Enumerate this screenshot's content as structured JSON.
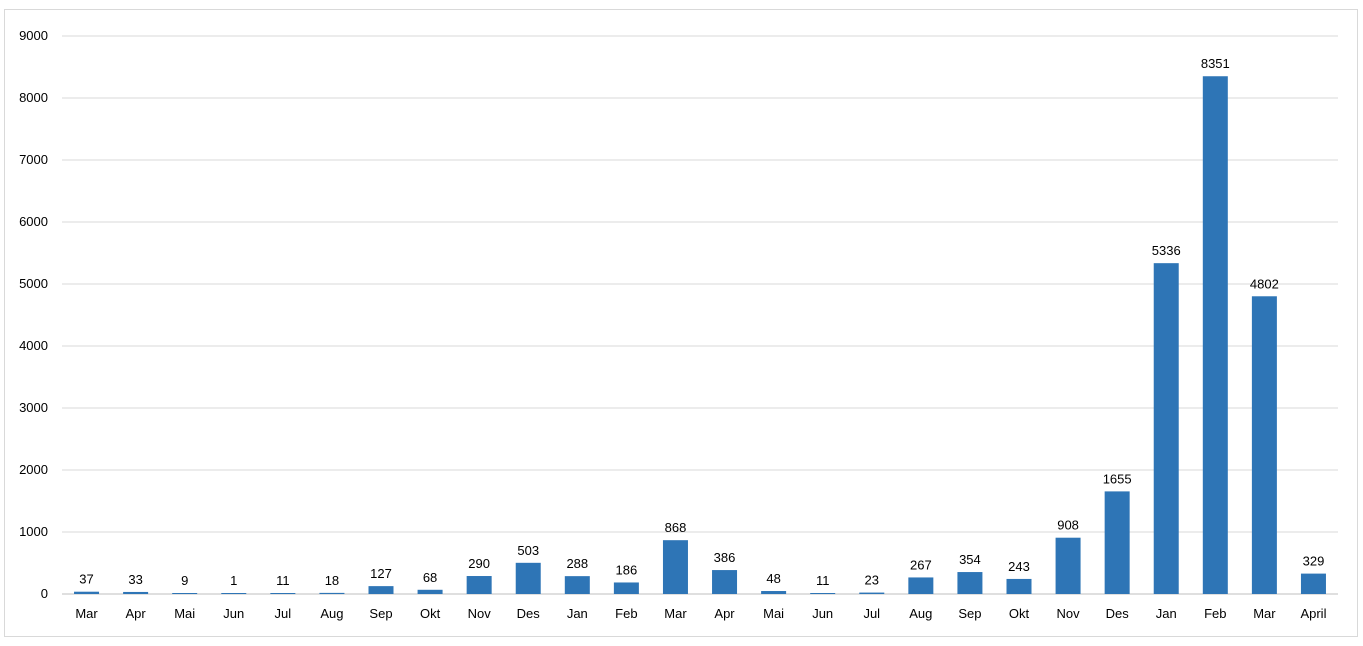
{
  "chart_data": {
    "type": "bar",
    "categories": [
      "Mar",
      "Apr",
      "Mai",
      "Jun",
      "Jul",
      "Aug",
      "Sep",
      "Okt",
      "Nov",
      "Des",
      "Jan",
      "Feb",
      "Mar",
      "Apr",
      "Mai",
      "Jun",
      "Jul",
      "Aug",
      "Sep",
      "Okt",
      "Nov",
      "Des",
      "Jan",
      "Feb",
      "Mar",
      "April"
    ],
    "values": [
      37,
      33,
      9,
      1,
      11,
      18,
      127,
      68,
      290,
      503,
      288,
      186,
      868,
      386,
      48,
      11,
      23,
      267,
      354,
      243,
      908,
      1655,
      5336,
      8351,
      4802,
      329
    ],
    "ylim": [
      0,
      9000
    ],
    "yticks": [
      0,
      1000,
      2000,
      3000,
      4000,
      5000,
      6000,
      7000,
      8000,
      9000
    ],
    "grid": true,
    "legend": "none",
    "bar_color": "#2e75b6",
    "data_labels": true
  }
}
